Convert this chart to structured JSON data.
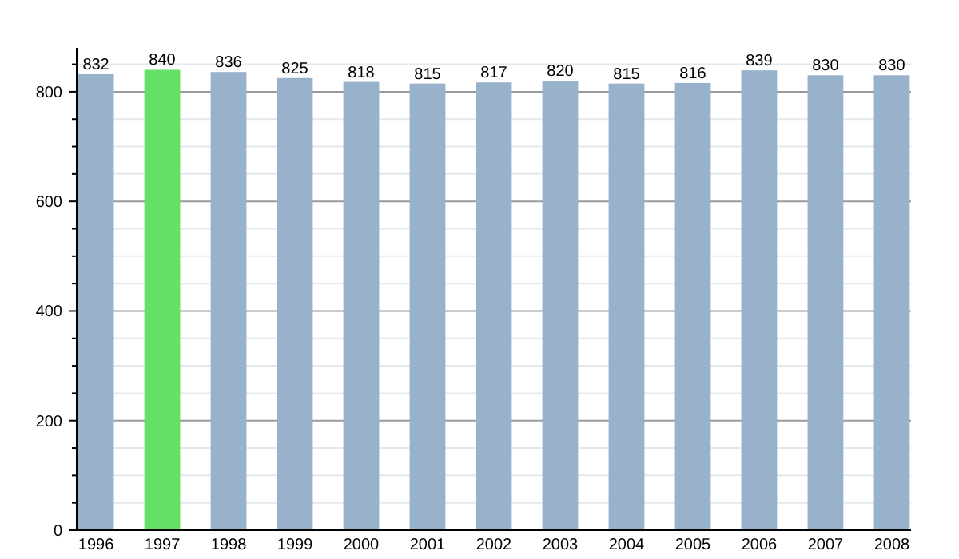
{
  "chart_data": {
    "type": "bar",
    "categories": [
      "1996",
      "1997",
      "1998",
      "1999",
      "2000",
      "2001",
      "2002",
      "2003",
      "2004",
      "2005",
      "2006",
      "2007",
      "2008"
    ],
    "values": [
      832,
      840,
      836,
      825,
      818,
      815,
      817,
      820,
      815,
      816,
      839,
      830,
      830
    ],
    "colors": [
      "#98b2cc",
      "#66e066",
      "#98b2cc",
      "#98b2cc",
      "#98b2cc",
      "#98b2cc",
      "#98b2cc",
      "#98b2cc",
      "#98b2cc",
      "#98b2cc",
      "#98b2cc",
      "#98b2cc",
      "#98b2cc"
    ],
    "ylim": [
      0,
      880
    ],
    "yticks": [
      0,
      {
        "value": 50,
        "label": null
      },
      {
        "value": 100,
        "label": null
      },
      {
        "value": 150,
        "label": null
      },
      200,
      {
        "value": 250,
        "label": null
      },
      {
        "value": 300,
        "label": null
      },
      {
        "value": 350,
        "label": null
      },
      400,
      {
        "value": 450,
        "label": null
      },
      {
        "value": 500,
        "label": null
      },
      {
        "value": 550,
        "label": null
      },
      600,
      {
        "value": 650,
        "label": null
      },
      {
        "value": 700,
        "label": null
      },
      {
        "value": 750,
        "label": null
      },
      800,
      {
        "value": 850,
        "label": null
      }
    ],
    "grid": true,
    "data_labels": true
  }
}
